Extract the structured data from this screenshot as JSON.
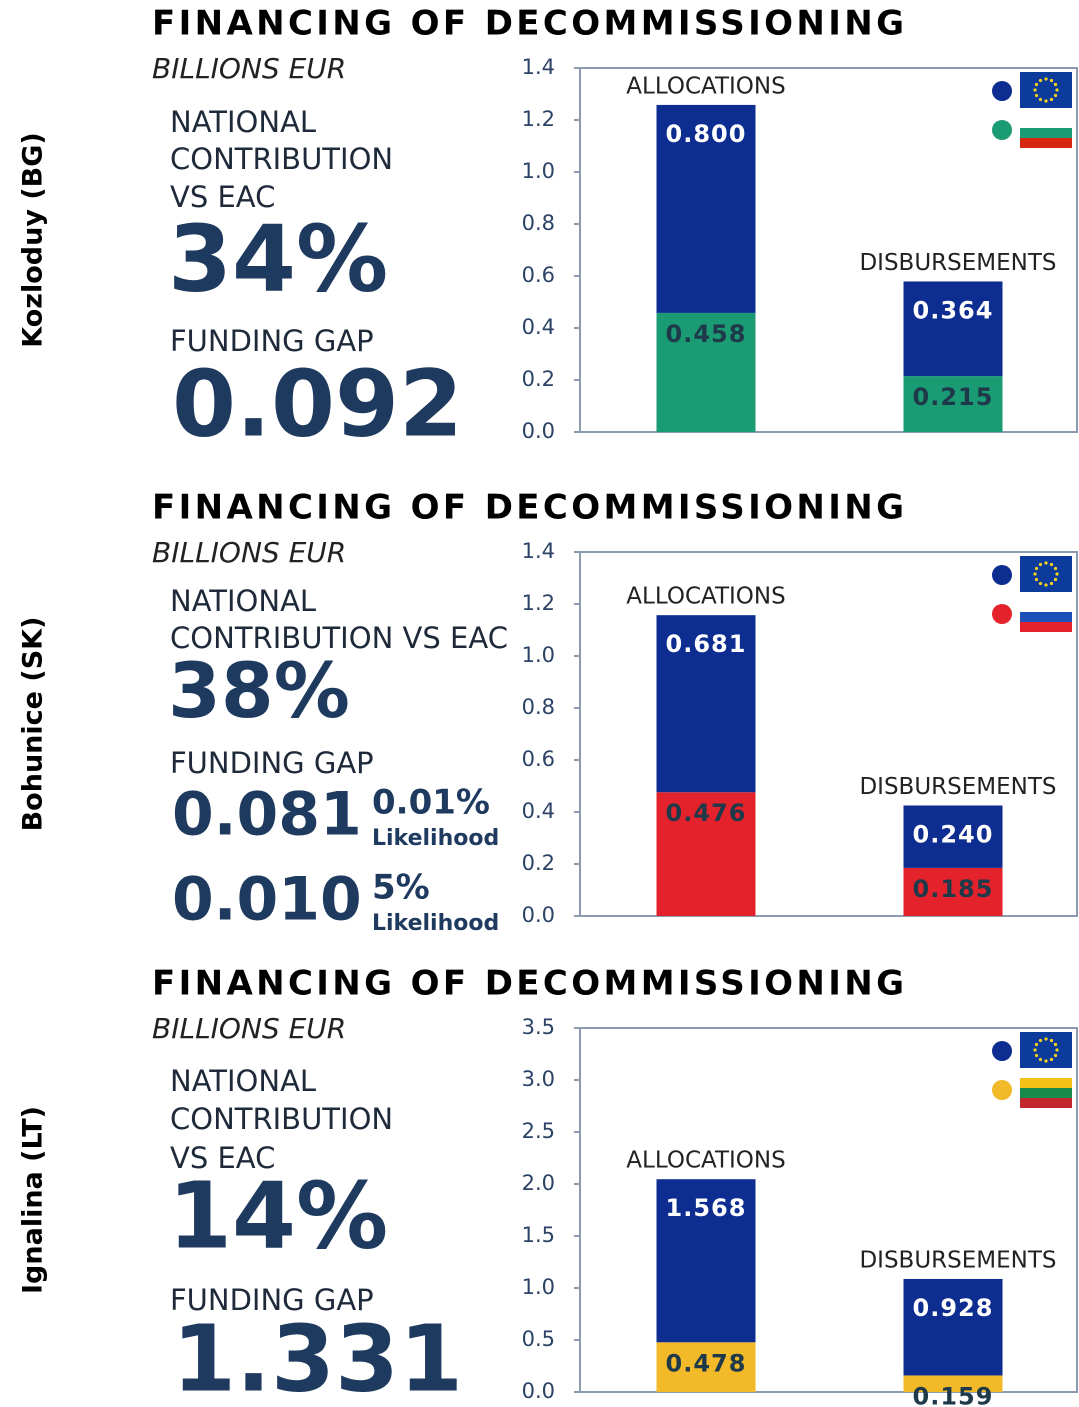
{
  "chart_data": [
    {
      "type": "bar",
      "side_label": "Kozloduy (BG)",
      "title": "FINANCING OF DECOMMISSIONING",
      "subtitle": "BILLIONS EUR",
      "contribution_label": [
        "NATIONAL",
        "CONTRIBUTION",
        "VS EAC"
      ],
      "contribution": "34%",
      "gap_label": "FUNDING GAP",
      "gaps": [
        {
          "value": "0.092"
        }
      ],
      "categories": [
        "ALLOCATIONS",
        "DISBURSEMENTS"
      ],
      "series": [
        {
          "color": "#1a9b74",
          "values": [
            0.458,
            0.215
          ],
          "value_labels": [
            "0.458",
            "0.215"
          ]
        },
        {
          "color": "#0d2d91",
          "values": [
            0.8,
            0.364
          ],
          "value_labels": [
            "0.800",
            "0.364"
          ]
        }
      ],
      "ylim": [
        0,
        1.4
      ],
      "yticks": [
        {
          "value": 0,
          "label": "0.0"
        },
        0.2,
        0.4,
        0.6,
        0.8,
        {
          "value": 1,
          "label": "1.0"
        },
        1.2,
        1.4
      ]
    },
    {
      "type": "bar",
      "side_label": "Bohunice (SK)",
      "title": "FINANCING OF DECOMMISSIONING",
      "subtitle": "BILLIONS EUR",
      "contribution_label": [
        "NATIONAL",
        "CONTRIBUTION VS EAC"
      ],
      "contribution": "38%",
      "gap_label": "FUNDING GAP",
      "gaps": [
        {
          "value": "0.081",
          "likelihood": "0.01%",
          "likelihood_label": "Likelihood"
        },
        {
          "value": "0.010",
          "likelihood": "5%",
          "likelihood_label": "Likelihood"
        }
      ],
      "categories": [
        "ALLOCATIONS",
        "DISBURSEMENTS"
      ],
      "series": [
        {
          "color": "#e3222b",
          "values": [
            0.476,
            0.185
          ],
          "value_labels": [
            "0.476",
            "0.185"
          ]
        },
        {
          "color": "#0d2d91",
          "values": [
            0.681,
            0.24
          ],
          "value_labels": [
            "0.681",
            "0.240"
          ]
        }
      ],
      "ylim": [
        0,
        1.4
      ],
      "yticks": [
        {
          "value": 0,
          "label": "0.0"
        },
        0.2,
        0.4,
        0.6,
        0.8,
        {
          "value": 1,
          "label": "1.0"
        },
        1.2,
        1.4
      ]
    },
    {
      "type": "bar",
      "side_label": "Ignalina (LT)",
      "title": "FINANCING OF DECOMMISSIONING",
      "subtitle": "BILLIONS EUR",
      "contribution_label": [
        "NATIONAL",
        "CONTRIBUTION",
        "VS EAC"
      ],
      "contribution": "14%",
      "gap_label": "FUNDING GAP",
      "gaps": [
        {
          "value": "1.331"
        }
      ],
      "categories": [
        "ALLOCATIONS",
        "DISBURSEMENTS"
      ],
      "series": [
        {
          "color": "#f2b928",
          "values": [
            0.478,
            0.159
          ],
          "value_labels": [
            "0.478",
            "0.159"
          ]
        },
        {
          "color": "#0d2d91",
          "values": [
            1.568,
            0.928
          ],
          "value_labels": [
            "1.568",
            "0.928"
          ]
        }
      ],
      "ylim": [
        0,
        3.5
      ],
      "yticks": [
        {
          "value": 0,
          "label": "0.0"
        },
        0.5,
        {
          "value": 1,
          "label": "1.0"
        },
        1.5,
        {
          "value": 2,
          "label": "2.0"
        },
        2.5,
        {
          "value": 3,
          "label": "3.0"
        },
        3.5
      ]
    }
  ]
}
